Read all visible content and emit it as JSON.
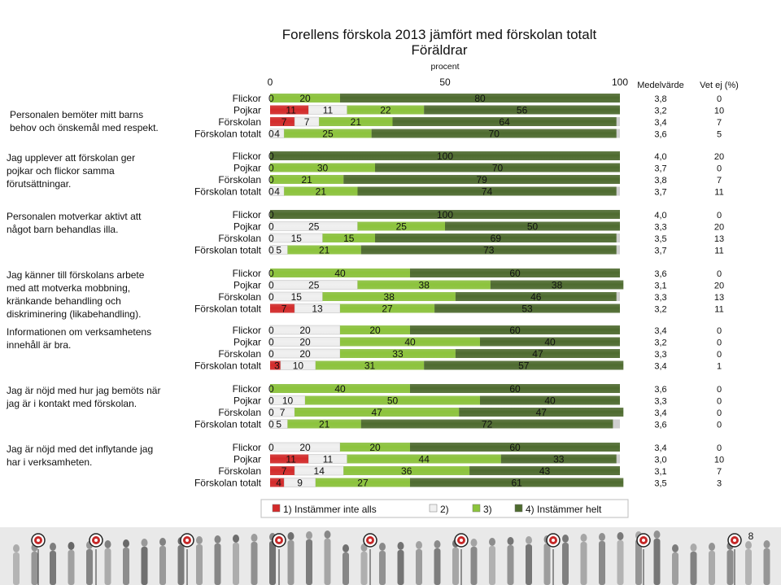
{
  "title": "Forellens förskola 2013 jämfört med förskolan totalt",
  "subtitle": "Föräldrar",
  "axis_unit": "procent",
  "axis_ticks": [
    "0",
    "50",
    "100"
  ],
  "col_mean_header": "Medelvärde",
  "col_dontknow_header": "Vet ej (%)",
  "page_number": "8",
  "colors": {
    "c1": "#d42a2a",
    "c2": "#f0f0f0",
    "c3": "#8cc43c",
    "c4": "#4e6b2f",
    "track": "#cfcfcf"
  },
  "chart_data": {
    "type": "bar",
    "stacked": true,
    "orientation": "horizontal",
    "xlim": [
      0,
      100
    ],
    "legend": [
      "1) Instämmer inte alls",
      "2)",
      "3)",
      "4) Instämmer helt"
    ],
    "legend_position": "bottom",
    "groups": [
      {
        "question": "Personalen bemöter mitt barns behov och önskemål med respekt.",
        "rows": [
          {
            "label": "Flickor",
            "values": [
              0,
              0,
              20,
              80
            ],
            "mean": "3,8",
            "dontknow": "0"
          },
          {
            "label": "Pojkar",
            "values": [
              11,
              11,
              22,
              56
            ],
            "mean": "3,2",
            "dontknow": "10"
          },
          {
            "label": "Förskolan",
            "values": [
              7,
              7,
              21,
              64
            ],
            "mean": "3,4",
            "dontknow": "7"
          },
          {
            "label": "Förskolan totalt",
            "values": [
              0,
              4,
              25,
              70
            ],
            "mean": "3,6",
            "dontknow": "5"
          }
        ]
      },
      {
        "question": "Jag upplever att förskolan ger pojkar och flickor samma förutsättningar.",
        "rows": [
          {
            "label": "Flickor",
            "values": [
              0,
              0,
              0,
              100
            ],
            "mean": "4,0",
            "dontknow": "20"
          },
          {
            "label": "Pojkar",
            "values": [
              0,
              0,
              30,
              70
            ],
            "mean": "3,7",
            "dontknow": "0"
          },
          {
            "label": "Förskolan",
            "values": [
              0,
              0,
              21,
              79
            ],
            "mean": "3,8",
            "dontknow": "7"
          },
          {
            "label": "Förskolan totalt",
            "values": [
              0,
              4,
              21,
              74
            ],
            "mean": "3,7",
            "dontknow": "11"
          }
        ]
      },
      {
        "question": "Personalen motverkar aktivt att något barn behandlas illa.",
        "rows": [
          {
            "label": "Flickor",
            "values": [
              0,
              0,
              0,
              100
            ],
            "mean": "4,0",
            "dontknow": "0"
          },
          {
            "label": "Pojkar",
            "values": [
              0,
              25,
              25,
              50
            ],
            "mean": "3,3",
            "dontknow": "20"
          },
          {
            "label": "Förskolan",
            "values": [
              0,
              15,
              15,
              69
            ],
            "mean": "3,5",
            "dontknow": "13"
          },
          {
            "label": "Förskolan totalt",
            "values": [
              0,
              5,
              21,
              73
            ],
            "mean": "3,7",
            "dontknow": "11"
          }
        ]
      },
      {
        "question": "Jag känner till förskolans arbete med att motverka mobbning, kränkande behandling och diskriminering (likabehandling).",
        "rows": [
          {
            "label": "Flickor",
            "values": [
              0,
              0,
              40,
              60
            ],
            "mean": "3,6",
            "dontknow": "0"
          },
          {
            "label": "Pojkar",
            "values": [
              0,
              25,
              38,
              38
            ],
            "mean": "3,1",
            "dontknow": "20"
          },
          {
            "label": "Förskolan",
            "values": [
              0,
              15,
              38,
              46
            ],
            "mean": "3,3",
            "dontknow": "13"
          },
          {
            "label": "Förskolan totalt",
            "values": [
              7,
              13,
              27,
              53
            ],
            "mean": "3,2",
            "dontknow": "11"
          }
        ]
      },
      {
        "question": "Informationen om verksamhetens innehåll är bra.",
        "rows": [
          {
            "label": "Flickor",
            "values": [
              0,
              20,
              20,
              60
            ],
            "mean": "3,4",
            "dontknow": "0"
          },
          {
            "label": "Pojkar",
            "values": [
              0,
              20,
              40,
              40
            ],
            "mean": "3,2",
            "dontknow": "0"
          },
          {
            "label": "Förskolan",
            "values": [
              0,
              20,
              33,
              47
            ],
            "mean": "3,3",
            "dontknow": "0"
          },
          {
            "label": "Förskolan totalt",
            "values": [
              3,
              10,
              31,
              57
            ],
            "mean": "3,4",
            "dontknow": "1"
          }
        ]
      },
      {
        "question": "Jag är nöjd med hur jag bemöts när jag är i kontakt med förskolan.",
        "rows": [
          {
            "label": "Flickor",
            "values": [
              0,
              0,
              40,
              60
            ],
            "mean": "3,6",
            "dontknow": "0"
          },
          {
            "label": "Pojkar",
            "values": [
              0,
              10,
              50,
              40
            ],
            "mean": "3,3",
            "dontknow": "0"
          },
          {
            "label": "Förskolan",
            "values": [
              0,
              7,
              47,
              47
            ],
            "mean": "3,4",
            "dontknow": "0"
          },
          {
            "label": "Förskolan totalt",
            "values": [
              0,
              5,
              21,
              72
            ],
            "mean": "3,6",
            "dontknow": "0"
          }
        ]
      },
      {
        "question": "Jag är nöjd med det inflytande jag har i verksamheten.",
        "rows": [
          {
            "label": "Flickor",
            "values": [
              0,
              20,
              20,
              60
            ],
            "mean": "3,4",
            "dontknow": "0"
          },
          {
            "label": "Pojkar",
            "values": [
              11,
              11,
              44,
              33
            ],
            "mean": "3,0",
            "dontknow": "10"
          },
          {
            "label": "Förskolan",
            "values": [
              7,
              14,
              36,
              43
            ],
            "mean": "3,1",
            "dontknow": "7"
          },
          {
            "label": "Förskolan totalt",
            "values": [
              4,
              9,
              27,
              61
            ],
            "mean": "3,5",
            "dontknow": "3"
          }
        ]
      }
    ]
  }
}
